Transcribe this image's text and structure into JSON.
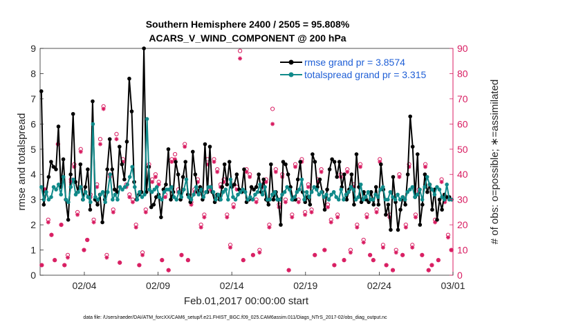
{
  "chart_data": {
    "type": "line",
    "title_line1": "Southern Hemisphere 2400 / 2505 = 95.808%",
    "title_line2": "ACARS_V_WIND_COMPONENT @ 200 hPa",
    "xlabel": "Feb.01,2017 00:00:00 start",
    "ylabel_left": "rmse and totalspread",
    "ylabel_right": "# of obs: o=possible; ∗=assimilated",
    "footnote": "data file: /Users/raeder/DAI/ATM_forcXX/CAM6_setup/f.e21.FHIST_BGC.f09_025.CAM6assim.011/Diags_NTrS_2017-02/obs_diag_output.nc",
    "xlim": [
      0,
      28
    ],
    "ylim_left": [
      0,
      9
    ],
    "ylim_right": [
      0,
      90
    ],
    "x_ticks": [
      {
        "x": 3,
        "label": "02/04"
      },
      {
        "x": 8,
        "label": "02/09"
      },
      {
        "x": 13,
        "label": "02/14"
      },
      {
        "x": 18,
        "label": "02/19"
      },
      {
        "x": 23,
        "label": "02/24"
      },
      {
        "x": 28,
        "label": "03/01"
      }
    ],
    "y_ticks_left": [
      "0",
      "1",
      "2",
      "3",
      "4",
      "5",
      "6",
      "7",
      "8",
      "9"
    ],
    "y_ticks_right": [
      "0",
      "10",
      "20",
      "30",
      "40",
      "50",
      "60",
      "70",
      "80",
      "90"
    ],
    "colors": {
      "rmse": "#000000",
      "spread": "#108a8a",
      "obs": "#d81b60",
      "legend_text": "#1f5fd6",
      "axis": "#262626"
    },
    "legend": [
      {
        "label": "rmse grand pr = 3.8574"
      },
      {
        "label": "totalspread grand pr = 3.315"
      }
    ],
    "series": [
      {
        "name": "rmse",
        "values": [
          7.3,
          2.8,
          3.3,
          3.9,
          4.5,
          4.3,
          4.2,
          5.9,
          3.5,
          4.6,
          3.0,
          2.2,
          4.0,
          6.4,
          3.7,
          3.3,
          4.4,
          3.0,
          3.5,
          4.2,
          2.6,
          6.9,
          3.0,
          2.8,
          3.2,
          2.1,
          3.0,
          4.2,
          5.4,
          4.2,
          3.4,
          3.3,
          5.1,
          4.4,
          3.8,
          5.3,
          7.8,
          6.5,
          3.7,
          3.0,
          3.2,
          3.3,
          9.0,
          3.3,
          4.3,
          2.7,
          2.8,
          3.1,
          3.2,
          2.3,
          3.4,
          3.6,
          5.0,
          3.0,
          3.3,
          4.5,
          4.0,
          3.0,
          3.9,
          4.5,
          3.2,
          2.9,
          4.9,
          4.0,
          3.3,
          3.5,
          3.0,
          5.2,
          3.3,
          5.1,
          3.3,
          2.9,
          3.2,
          3.0,
          3.5,
          4.4,
          3.6,
          4.5,
          3.5,
          3.6,
          4.0,
          3.4,
          3.3,
          4.2,
          2.9,
          3.0,
          3.5,
          3.4,
          3.5,
          4.0,
          3.3,
          3.8,
          3.0,
          2.8,
          4.4,
          3.0,
          3.3,
          3.0,
          2.0,
          4.5,
          4.4,
          4.0,
          3.5,
          3.0,
          3.0,
          3.8,
          4.5,
          3.3,
          2.9,
          3.1,
          2.8,
          4.8,
          4.5,
          3.5,
          3.8,
          3.3,
          2.6,
          3.4,
          4.2,
          4.6,
          4.5,
          3.9,
          4.5,
          3.5,
          4.0,
          3.0,
          3.4,
          4.0,
          2.8,
          4.8,
          3.5,
          2.9,
          3.3,
          3.0,
          2.9,
          3.3,
          2.8,
          3.5,
          2.8,
          4.4,
          3.4,
          2.4,
          2.8,
          1.8,
          3.9,
          2.9,
          1.8,
          2.6,
          3.1,
          2.8,
          4.0,
          6.3,
          5.1,
          3.1,
          4.8,
          2.0,
          2.8,
          4.0,
          3.3,
          3.6,
          2.6,
          3.4,
          2.2,
          3.0,
          2.6,
          3.2,
          3.1,
          3.1,
          3.0
        ]
      },
      {
        "name": "totalspread",
        "values": [
          3.5,
          3.0,
          3.3,
          3.0,
          3.1,
          3.5,
          3.4,
          3.6,
          3.2,
          3.9,
          3.0,
          2.9,
          3.5,
          3.8,
          3.2,
          3.3,
          3.5,
          3.0,
          3.3,
          3.1,
          2.9,
          6.0,
          3.1,
          3.0,
          3.2,
          3.3,
          2.9,
          3.3,
          4.0,
          3.0,
          3.2,
          3.0,
          3.5,
          3.4,
          3.5,
          3.6,
          3.9,
          4.3,
          3.5,
          3.0,
          3.3,
          3.1,
          3.2,
          6.2,
          3.4,
          3.3,
          3.4,
          3.5,
          3.1,
          3.0,
          3.3,
          3.4,
          3.4,
          3.5,
          3.1,
          3.0,
          3.3,
          3.1,
          3.4,
          3.8,
          3.1,
          3.0,
          3.2,
          3.5,
          3.2,
          3.4,
          3.1,
          3.3,
          3.5,
          3.5,
          3.3,
          3.0,
          3.2,
          3.0,
          3.3,
          3.4,
          3.0,
          3.8,
          3.1,
          3.0,
          3.2,
          3.3,
          3.4,
          3.3,
          3.0,
          3.1,
          3.0,
          3.2,
          3.3,
          3.6,
          3.2,
          3.5,
          3.0,
          3.0,
          3.2,
          3.3,
          3.0,
          3.0,
          3.2,
          3.3,
          3.5,
          3.4,
          3.0,
          3.1,
          3.3,
          3.4,
          3.8,
          3.0,
          3.3,
          3.1,
          3.3,
          3.5,
          3.4,
          3.2,
          3.3,
          3.1,
          3.2,
          3.0,
          3.2,
          3.3,
          3.1,
          3.0,
          3.4,
          3.0,
          3.2,
          3.3,
          3.5,
          3.4,
          3.0,
          3.1,
          3.6,
          3.0,
          3.1,
          3.3,
          3.0,
          3.0,
          3.2,
          3.1,
          3.4,
          3.5,
          3.0,
          3.0,
          3.3,
          3.1,
          3.0,
          3.2,
          3.0,
          3.1,
          3.0,
          3.3,
          3.4,
          3.5,
          3.1,
          3.2,
          3.4,
          3.0,
          3.5,
          3.9,
          3.6,
          3.4,
          3.2,
          3.5,
          3.4,
          3.1,
          3.0,
          3.6,
          3.0,
          3.0
        ]
      }
    ],
    "obs_possible": [
      4,
      34,
      22,
      16,
      6,
      52,
      20,
      4,
      8,
      38,
      44,
      25,
      50,
      10,
      14,
      32,
      22,
      36,
      54,
      67,
      8,
      40,
      26,
      56,
      5,
      46,
      36,
      32,
      30,
      20,
      4,
      9,
      26,
      44,
      38,
      40,
      37,
      6,
      32,
      2,
      46,
      48,
      34,
      8,
      52,
      6,
      29,
      34,
      38,
      20,
      24,
      46,
      35,
      46,
      42,
      36,
      38,
      24,
      12,
      28,
      35,
      89,
      6,
      42,
      40,
      8,
      30,
      10,
      36,
      38,
      20,
      66,
      42,
      28,
      40,
      30,
      2,
      24,
      44,
      30,
      46,
      25,
      36,
      26,
      8,
      38,
      42,
      10,
      28,
      22,
      4,
      24,
      40,
      6,
      42,
      10,
      36,
      20,
      44,
      14,
      24,
      8,
      6,
      26,
      46,
      12,
      4,
      24,
      2,
      10,
      40,
      8,
      20,
      44,
      12,
      24,
      34,
      8,
      44,
      2,
      4,
      22,
      6,
      38,
      30,
      16,
      10
    ],
    "obs_assimilated": [
      4,
      34,
      21,
      16,
      6,
      52,
      20,
      4,
      7,
      37,
      43,
      24,
      49,
      10,
      14,
      31,
      21,
      35,
      52,
      66,
      7,
      39,
      25,
      54,
      5,
      45,
      35,
      31,
      29,
      19,
      4,
      8,
      25,
      43,
      37,
      39,
      36,
      6,
      31,
      2,
      45,
      46,
      33,
      8,
      51,
      6,
      28,
      33,
      37,
      19,
      23,
      44,
      34,
      45,
      41,
      35,
      37,
      23,
      11,
      27,
      34,
      86,
      6,
      41,
      39,
      8,
      29,
      9,
      35,
      37,
      19,
      60,
      41,
      27,
      39,
      29,
      2,
      23,
      43,
      29,
      45,
      24,
      35,
      25,
      8,
      37,
      41,
      10,
      27,
      21,
      4,
      23,
      39,
      6,
      41,
      9,
      35,
      19,
      43,
      13,
      23,
      8,
      6,
      25,
      45,
      11,
      4,
      23,
      2,
      9,
      39,
      8,
      19,
      43,
      11,
      23,
      33,
      8,
      43,
      2,
      4,
      21,
      6,
      37,
      29,
      15,
      10
    ]
  }
}
